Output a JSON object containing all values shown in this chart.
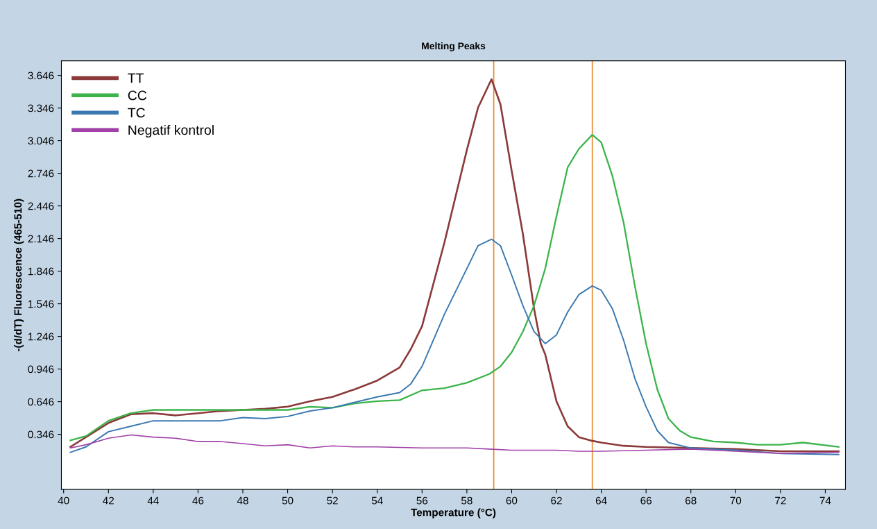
{
  "chart_data": {
    "type": "line",
    "title": "Melting Peaks",
    "xlabel": "Temperature (°C)",
    "ylabel": "-(d/dT) Fluorescence (465-510)",
    "xlim": [
      39.9,
      74.9
    ],
    "ylim": [
      -0.16,
      3.78
    ],
    "xticks": [
      40,
      42,
      44,
      46,
      48,
      50,
      52,
      54,
      56,
      58,
      60,
      62,
      64,
      66,
      68,
      70,
      72,
      74
    ],
    "yticks": [
      0.346,
      0.646,
      0.946,
      1.246,
      1.546,
      1.846,
      2.146,
      2.446,
      2.746,
      3.046,
      3.346,
      3.646
    ],
    "grid": false,
    "legend": "top left",
    "marker": "none",
    "line_style": "solid",
    "ref_lines": [
      {
        "axis": "x",
        "value": 59.2,
        "color": "#e8892a"
      },
      {
        "axis": "x",
        "value": 63.6,
        "color": "#e8892a"
      }
    ],
    "series": [
      {
        "name": "TT",
        "color": "#8b3a3a",
        "x": [
          40.3,
          41,
          42,
          43,
          44,
          45,
          46,
          47,
          48,
          49,
          50,
          51,
          52,
          53,
          54,
          55,
          55.5,
          56,
          57,
          58,
          58.5,
          59.1,
          59.5,
          60,
          60.5,
          61,
          61.3,
          61.5,
          62,
          62.5,
          63,
          63.5,
          64,
          65,
          66,
          68,
          70,
          72,
          74.6
        ],
        "values": [
          0.23,
          0.32,
          0.45,
          0.53,
          0.54,
          0.52,
          0.54,
          0.56,
          0.57,
          0.58,
          0.6,
          0.65,
          0.69,
          0.76,
          0.84,
          0.96,
          1.13,
          1.34,
          2.11,
          2.96,
          3.35,
          3.61,
          3.38,
          2.77,
          2.19,
          1.5,
          1.18,
          1.08,
          0.65,
          0.42,
          0.32,
          0.29,
          0.27,
          0.24,
          0.23,
          0.22,
          0.21,
          0.19,
          0.19
        ]
      },
      {
        "name": "CC",
        "color": "#3cb44b",
        "x": [
          40.3,
          41,
          42,
          43,
          44,
          45,
          46,
          47,
          48,
          49,
          50,
          51,
          52,
          53,
          54,
          55,
          56,
          57,
          58,
          59,
          59.5,
          60,
          60.5,
          61,
          61.5,
          62,
          62.5,
          63,
          63.6,
          64,
          64.5,
          65,
          65.5,
          66,
          66.5,
          67,
          67.5,
          68,
          69,
          70,
          71,
          72,
          73,
          74.6
        ],
        "values": [
          0.29,
          0.33,
          0.47,
          0.54,
          0.57,
          0.57,
          0.57,
          0.57,
          0.57,
          0.57,
          0.57,
          0.6,
          0.59,
          0.63,
          0.65,
          0.66,
          0.75,
          0.77,
          0.82,
          0.9,
          0.97,
          1.1,
          1.29,
          1.53,
          1.87,
          2.35,
          2.8,
          2.97,
          3.1,
          3.03,
          2.72,
          2.29,
          1.71,
          1.18,
          0.76,
          0.49,
          0.38,
          0.32,
          0.28,
          0.27,
          0.25,
          0.25,
          0.27,
          0.23
        ]
      },
      {
        "name": "TC",
        "color": "#3a79b0",
        "x": [
          40.3,
          41,
          42,
          43,
          44,
          45,
          46,
          47,
          48,
          49,
          50,
          51,
          52,
          53,
          54,
          55,
          55.5,
          56,
          57,
          58,
          58.5,
          59.1,
          59.5,
          60,
          60.5,
          61,
          61.5,
          62,
          62.5,
          63,
          63.6,
          64,
          64.5,
          65,
          65.5,
          66,
          66.5,
          67,
          68,
          70,
          72,
          74.6
        ],
        "values": [
          0.18,
          0.23,
          0.37,
          0.42,
          0.47,
          0.47,
          0.47,
          0.47,
          0.5,
          0.49,
          0.51,
          0.56,
          0.59,
          0.64,
          0.69,
          0.73,
          0.81,
          0.97,
          1.45,
          1.87,
          2.08,
          2.14,
          2.08,
          1.81,
          1.53,
          1.29,
          1.18,
          1.26,
          1.47,
          1.63,
          1.71,
          1.67,
          1.5,
          1.21,
          0.86,
          0.6,
          0.38,
          0.27,
          0.22,
          0.2,
          0.17,
          0.16
        ]
      },
      {
        "name": "Negatif kontrol",
        "color": "#a040a8",
        "x": [
          40.3,
          41,
          42,
          43,
          44,
          45,
          46,
          47,
          48,
          49,
          50,
          51,
          52,
          53,
          54,
          56,
          58,
          59,
          60,
          62,
          63,
          64,
          66,
          68,
          70,
          72,
          74.6
        ],
        "values": [
          0.22,
          0.25,
          0.31,
          0.34,
          0.32,
          0.31,
          0.28,
          0.28,
          0.26,
          0.24,
          0.25,
          0.22,
          0.24,
          0.23,
          0.23,
          0.22,
          0.22,
          0.21,
          0.2,
          0.2,
          0.19,
          0.19,
          0.2,
          0.21,
          0.19,
          0.17,
          0.18
        ]
      }
    ]
  }
}
